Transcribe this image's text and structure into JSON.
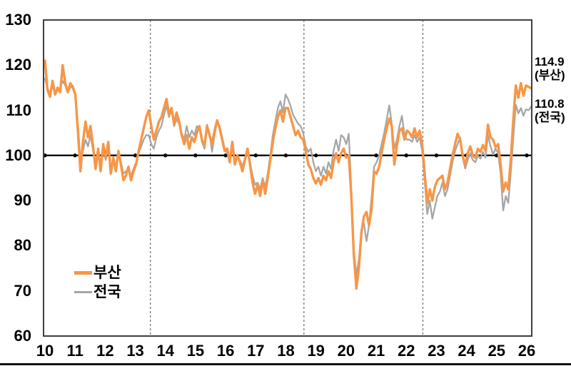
{
  "chart_data": {
    "type": "line",
    "title": "",
    "xlabel": "",
    "ylabel": "",
    "x_start_year": 2010,
    "x_interval": "monthly",
    "xlim": [
      2010,
      2026.2
    ],
    "ylim": [
      60,
      130
    ],
    "y_ticks": [
      130,
      120,
      110,
      100,
      90,
      80,
      70,
      60
    ],
    "x_tick_labels": [
      "10",
      "11",
      "12",
      "13",
      "14",
      "15",
      "16",
      "17",
      "18",
      "19",
      "20",
      "21",
      "22",
      "23",
      "24",
      "25",
      "26"
    ],
    "baseline_value": 100,
    "dashed_vlines_years": [
      2013.5,
      2018.6,
      2022.55
    ],
    "grid": false,
    "legend_position": "lower-left",
    "series": [
      {
        "name": "부산",
        "color": "#F79646",
        "values": [
          121.0,
          114.5,
          113.0,
          116.5,
          113.5,
          115.0,
          114.0,
          120.0,
          116.0,
          114.0,
          116.0,
          115.0,
          113.5,
          105.5,
          96.5,
          103.0,
          107.5,
          104.0,
          106.5,
          102.0,
          97.0,
          101.5,
          96.5,
          102.5,
          99.5,
          103.0,
          96.0,
          99.5,
          96.5,
          101.0,
          98.0,
          94.5,
          95.5,
          97.5,
          94.5,
          96.5,
          98.0,
          101.0,
          103.5,
          106.0,
          108.5,
          110.0,
          106.5,
          103.5,
          105.5,
          107.5,
          108.5,
          110.5,
          112.5,
          109.0,
          110.5,
          107.0,
          109.5,
          107.5,
          104.5,
          102.5,
          104.5,
          101.5,
          104.0,
          103.0,
          105.0,
          106.5,
          103.5,
          102.0,
          106.5,
          104.5,
          102.5,
          105.5,
          107.8,
          106.0,
          103.5,
          101.0,
          101.5,
          98.5,
          103.0,
          98.0,
          100.0,
          98.5,
          96.5,
          99.0,
          101.5,
          98.0,
          94.0,
          91.5,
          93.5,
          91.0,
          94.5,
          91.5,
          95.0,
          99.0,
          103.0,
          106.0,
          108.5,
          110.0,
          107.5,
          110.5,
          110.5,
          108.5,
          106.5,
          104.5,
          105.5,
          104.0,
          103.5,
          101.0,
          98.0,
          97.0,
          95.0,
          93.8,
          95.0,
          93.5,
          95.5,
          94.5,
          96.5,
          95.0,
          98.5,
          100.5,
          98.5,
          100.5,
          101.5,
          99.5,
          100.0,
          91.0,
          78.0,
          70.5,
          75.0,
          83.0,
          86.5,
          87.5,
          84.5,
          88.0,
          96.5,
          96.0,
          97.5,
          100.5,
          103.5,
          106.0,
          108.2,
          106.5,
          98.0,
          102.0,
          105.5,
          106.0,
          103.5,
          105.5,
          105.0,
          104.0,
          106.0,
          104.0,
          105.5,
          102.5,
          96.0,
          89.4,
          92.5,
          90.0,
          93.0,
          94.5,
          95.0,
          95.5,
          92.5,
          94.0,
          97.0,
          100.0,
          102.5,
          104.8,
          103.5,
          100.0,
          97.8,
          100.5,
          102.0,
          100.0,
          99.5,
          101.5,
          100.8,
          102.3,
          101.0,
          106.8,
          104.0,
          103.5,
          101.8,
          102.5,
          98.0,
          92.0,
          94.0,
          92.5,
          99.0,
          108.0,
          115.5,
          112.8,
          116.0,
          113.2,
          115.5,
          115.2,
          114.9
        ]
      },
      {
        "name": "전국",
        "color": "#A6A6A6",
        "values": [
          117.0,
          115.0,
          113.5,
          115.5,
          113.5,
          114.5,
          115.0,
          116.5,
          115.5,
          114.0,
          115.0,
          115.5,
          113.5,
          107.0,
          99.0,
          101.0,
          103.5,
          102.0,
          104.5,
          101.0,
          98.0,
          100.0,
          97.5,
          101.0,
          99.0,
          101.5,
          97.0,
          99.0,
          97.5,
          100.0,
          98.5,
          96.0,
          96.5,
          97.0,
          95.5,
          97.0,
          98.5,
          100.5,
          102.0,
          103.5,
          104.5,
          104.5,
          102.5,
          101.5,
          104.0,
          105.5,
          106.5,
          109.0,
          111.0,
          108.5,
          110.0,
          106.5,
          108.0,
          107.0,
          105.0,
          103.5,
          106.5,
          104.0,
          105.5,
          104.5,
          106.5,
          106.0,
          103.0,
          101.5,
          106.8,
          105.0,
          100.8,
          104.5,
          107.5,
          106.5,
          104.0,
          101.5,
          100.5,
          99.0,
          102.0,
          98.5,
          99.5,
          99.0,
          97.5,
          99.5,
          100.5,
          98.5,
          95.5,
          93.5,
          94.0,
          92.5,
          95.0,
          93.0,
          96.0,
          100.0,
          104.5,
          107.5,
          110.5,
          112.0,
          109.5,
          113.5,
          112.5,
          111.0,
          109.0,
          108.0,
          107.0,
          106.5,
          105.0,
          102.0,
          100.8,
          101.5,
          98.5,
          96.5,
          97.5,
          95.5,
          97.5,
          96.0,
          98.5,
          97.0,
          101.0,
          103.5,
          101.0,
          104.5,
          104.0,
          102.5,
          104.8,
          92.5,
          79.0,
          73.5,
          77.0,
          83.5,
          85.0,
          81.0,
          84.5,
          90.5,
          97.5,
          98.5,
          100.0,
          102.5,
          105.0,
          108.0,
          111.1,
          107.0,
          101.5,
          103.5,
          106.5,
          108.8,
          104.5,
          103.5,
          103.5,
          103.0,
          104.5,
          103.0,
          104.0,
          101.0,
          94.5,
          87.0,
          90.0,
          86.0,
          88.5,
          91.0,
          92.0,
          94.0,
          91.0,
          92.5,
          95.5,
          98.5,
          101.0,
          102.5,
          104.0,
          99.5,
          97.1,
          99.0,
          100.5,
          99.0,
          98.5,
          100.0,
          99.3,
          100.8,
          99.5,
          104.5,
          102.0,
          100.2,
          101.5,
          100.5,
          96.0,
          87.8,
          91.0,
          89.5,
          96.0,
          104.0,
          111.2,
          109.3,
          110.5,
          108.8,
          110.2,
          110.0,
          110.8
        ]
      }
    ],
    "end_labels": [
      {
        "value": "114.9",
        "series": "(부산)"
      },
      {
        "value": "110.8",
        "series": "(전국)"
      }
    ],
    "colors": {
      "busan_line": "#F79646",
      "national_line": "#A6A6A6",
      "baseline": "#000000",
      "dashed_line": "#7F7F7F",
      "plot_border": "#3F3F3F"
    }
  },
  "legend": {
    "items": [
      {
        "label": "부산"
      },
      {
        "label": "전국"
      }
    ]
  }
}
